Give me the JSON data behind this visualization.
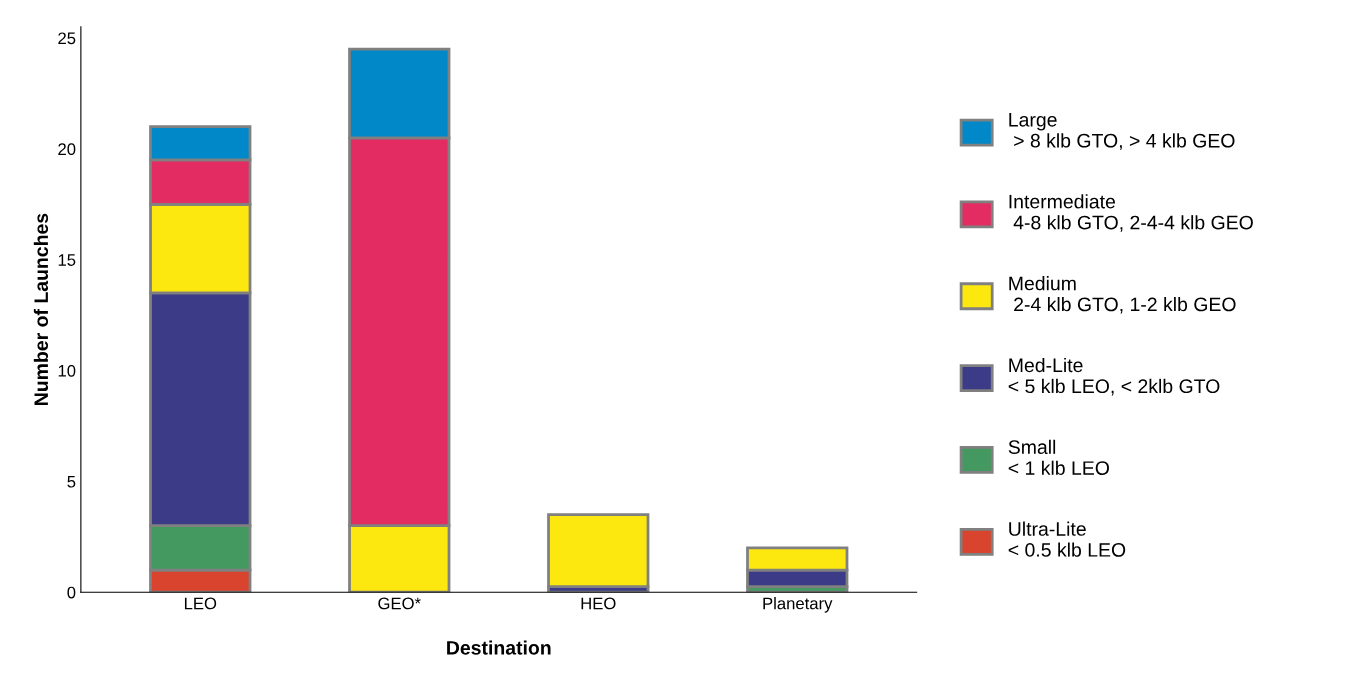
{
  "chart_data": {
    "type": "bar",
    "stacked": true,
    "xlabel": "Destination",
    "ylabel": "Number of Launches",
    "categories": [
      "LEO",
      "GEO*",
      "HEO",
      "Planetary"
    ],
    "series": [
      {
        "name": "Ultra-Lite\n< 0.5 klb LEO",
        "color": "#d8442e",
        "values": [
          1,
          0,
          0,
          0
        ]
      },
      {
        "name": "Small\n< 1 klb LEO",
        "color": "#449960",
        "values": [
          2,
          0,
          0,
          0.25
        ]
      },
      {
        "name": "Med-Lite\n< 5 klb LEO, < 2klb GTO",
        "color": "#3b3b87",
        "values": [
          10.5,
          0,
          0.25,
          0.75
        ]
      },
      {
        "name": "Medium\n 2-4 klb GTO, 1-2 klb GEO",
        "color": "#fce80f",
        "values": [
          4,
          3,
          3.25,
          1
        ]
      },
      {
        "name": "Intermediate\n 4-8 klb GTO, 2-4-4 klb GEO",
        "color": "#e32c61",
        "values": [
          2,
          17.5,
          0,
          0
        ]
      },
      {
        "name": "Large\n > 8 klb GTO, > 4 klb GEO",
        "color": "#0088c8",
        "values": [
          1.5,
          4,
          0,
          0
        ]
      }
    ],
    "ylim": [
      0,
      25.5
    ],
    "yticks": [
      0,
      5,
      10,
      15,
      20,
      25
    ],
    "grid": false,
    "legend": "right"
  }
}
